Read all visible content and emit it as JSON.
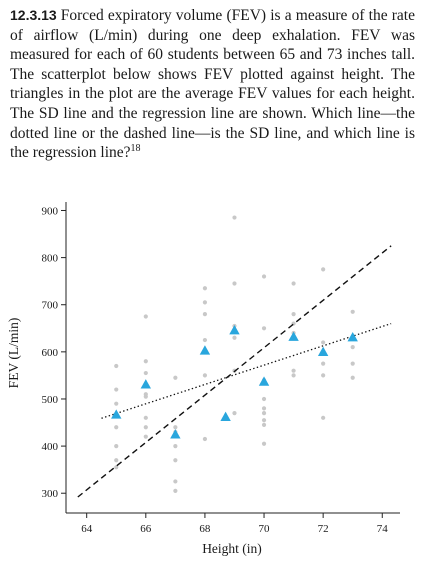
{
  "problem": {
    "number": "12.3.13",
    "text": "Forced expiratory volume (FEV) is a measure of the rate of airflow (L/min) during one deep exhalation. FEV was measured for each of 60 students between 65 and 73 inches tall. The scatterplot below shows FEV plotted against height. The triangles in the plot are the average FEV values for each height. The SD line and the regression line are shown. Which line—the dotted line or the dashed line—is the SD line, and which line is the regression line?",
    "footnote_ref": "18"
  },
  "chart_data": {
    "type": "scatter",
    "xlabel": "Height (in)",
    "ylabel": "FEV (L/min)",
    "xlim": [
      63.3,
      74.6
    ],
    "ylim": [
      275,
      918
    ],
    "xticks": [
      64,
      66,
      68,
      70,
      72,
      74
    ],
    "yticks": [
      300,
      400,
      500,
      600,
      700,
      800,
      900
    ],
    "series": [
      {
        "name": "students",
        "marker": "circle",
        "color": "#c8c8c8",
        "points": [
          [
            65,
            570
          ],
          [
            65,
            520
          ],
          [
            65,
            490
          ],
          [
            65,
            465
          ],
          [
            65,
            440
          ],
          [
            65,
            400
          ],
          [
            65,
            370
          ],
          [
            65,
            355
          ],
          [
            66,
            675
          ],
          [
            66,
            580
          ],
          [
            66,
            555
          ],
          [
            66,
            510
          ],
          [
            66,
            505
          ],
          [
            66,
            460
          ],
          [
            66,
            440
          ],
          [
            66,
            420
          ],
          [
            67,
            545
          ],
          [
            67,
            440
          ],
          [
            67,
            430
          ],
          [
            67,
            400
          ],
          [
            67,
            370
          ],
          [
            67,
            325
          ],
          [
            67,
            305
          ],
          [
            68,
            735
          ],
          [
            68,
            705
          ],
          [
            68,
            680
          ],
          [
            68,
            625
          ],
          [
            68,
            550
          ],
          [
            68,
            415
          ],
          [
            69,
            885
          ],
          [
            69,
            745
          ],
          [
            69,
            655
          ],
          [
            69,
            630
          ],
          [
            69,
            560
          ],
          [
            69,
            470
          ],
          [
            70,
            760
          ],
          [
            70,
            650
          ],
          [
            70,
            540
          ],
          [
            70,
            500
          ],
          [
            70,
            480
          ],
          [
            70,
            470
          ],
          [
            70,
            455
          ],
          [
            70,
            445
          ],
          [
            70,
            405
          ],
          [
            71,
            745
          ],
          [
            71,
            680
          ],
          [
            71,
            660
          ],
          [
            71,
            640
          ],
          [
            71,
            560
          ],
          [
            71,
            550
          ],
          [
            72,
            775
          ],
          [
            72,
            620
          ],
          [
            72,
            575
          ],
          [
            72,
            550
          ],
          [
            72,
            460
          ],
          [
            73,
            685
          ],
          [
            73,
            630
          ],
          [
            73,
            610
          ],
          [
            73,
            575
          ],
          [
            73,
            545
          ]
        ]
      },
      {
        "name": "average FEV by height",
        "marker": "triangle",
        "color": "#29a6dd",
        "points": [
          [
            65,
            467
          ],
          [
            66,
            531
          ],
          [
            67,
            425
          ],
          [
            68,
            603
          ],
          [
            68.7,
            462
          ],
          [
            69,
            646
          ],
          [
            70,
            537
          ],
          [
            71,
            632
          ],
          [
            72,
            600
          ],
          [
            73,
            631
          ]
        ]
      }
    ],
    "lines": [
      {
        "name": "dashed line",
        "style": "dashed",
        "from": [
          63.7,
          292
        ],
        "to": [
          74.3,
          825
        ]
      },
      {
        "name": "dotted line",
        "style": "dotted",
        "from": [
          64.5,
          459
        ],
        "to": [
          74.3,
          660
        ]
      }
    ]
  }
}
